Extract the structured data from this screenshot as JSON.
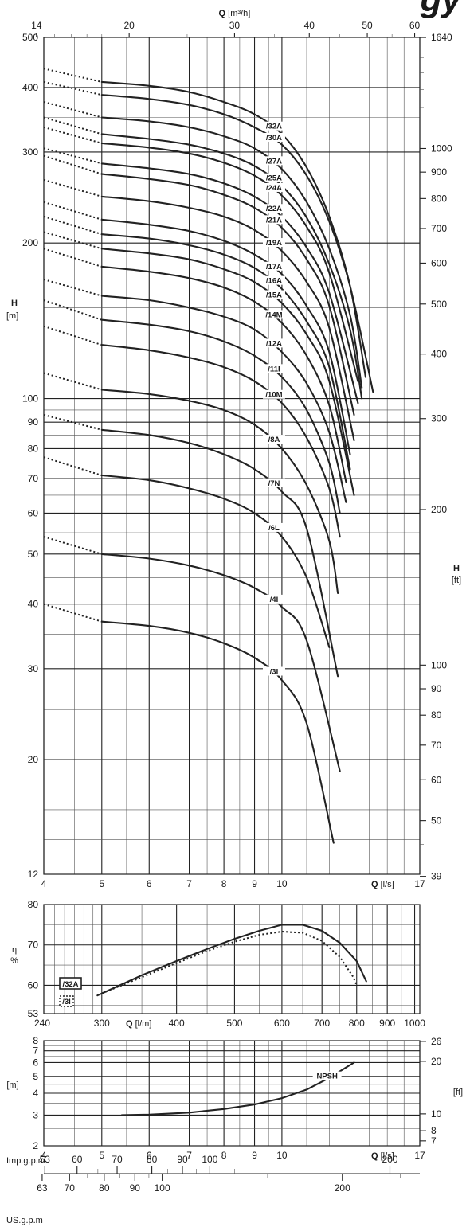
{
  "chart_data": [
    {
      "type": "line",
      "name": "head-curves",
      "xlabel": "Q",
      "xunit": "[l/s]",
      "ylabel": "H",
      "yunit": "[m]",
      "y2label": "H",
      "y2unit": "[ft]",
      "top_xlabel": "Q",
      "top_xunit": "[m³/h]",
      "x_scale": "log",
      "y_scale": "log",
      "xlim": [
        4,
        17
      ],
      "ylim": [
        12,
        500
      ],
      "x_ticks": [
        4,
        5,
        6,
        7,
        8,
        9,
        10,
        17
      ],
      "x_tick_labels": [
        "4",
        "5",
        "6",
        "7",
        "8",
        "9",
        "10",
        "17"
      ],
      "y_ticks": [
        12,
        20,
        30,
        40,
        50,
        60,
        70,
        80,
        90,
        100,
        200,
        300,
        400,
        500
      ],
      "y_tick_labels": [
        "12",
        "20",
        "30",
        "40",
        "50",
        "60",
        "70",
        "80",
        "90",
        "100",
        "200",
        "300",
        "400",
        "500"
      ],
      "top_x_ticks": [
        14,
        20,
        30,
        40,
        50,
        60
      ],
      "top_x_tick_labels": [
        "14",
        "20",
        "30",
        "40",
        "50",
        "60"
      ],
      "y2_ticks": [
        39,
        50,
        60,
        70,
        80,
        90,
        100,
        200,
        300,
        400,
        500,
        600,
        700,
        800,
        900,
        1000,
        1640
      ],
      "y2_tick_labels": [
        "39",
        "50",
        "60",
        "70",
        "80",
        "90",
        "100",
        "200",
        "300",
        "400",
        "500",
        "600",
        "700",
        "800",
        "900",
        "1000",
        "1640"
      ],
      "grid": true,
      "series": [
        {
          "label": "/32A",
          "x": [
            4,
            5,
            6,
            7,
            8,
            9,
            10,
            11,
            12,
            13,
            13.8
          ],
          "y": [
            435,
            410,
            403,
            392,
            375,
            355,
            325,
            280,
            225,
            165,
            110
          ]
        },
        {
          "label": "/30A",
          "x": [
            4,
            5,
            6,
            7,
            8,
            9,
            10,
            11,
            12,
            13,
            14.2
          ],
          "y": [
            410,
            387,
            380,
            370,
            355,
            335,
            310,
            270,
            220,
            165,
            103
          ]
        },
        {
          "label": "/27A",
          "x": [
            4,
            5,
            6,
            7,
            8,
            9,
            10,
            11,
            12,
            13,
            13.6
          ],
          "y": [
            375,
            350,
            344,
            335,
            322,
            305,
            278,
            240,
            195,
            145,
            105
          ]
        },
        {
          "label": "/25A",
          "x": [
            4,
            5,
            6,
            7,
            8,
            9,
            10,
            11,
            12,
            13,
            13.6
          ],
          "y": [
            350,
            325,
            318,
            310,
            298,
            282,
            258,
            224,
            182,
            136,
            100
          ]
        },
        {
          "label": "/24A",
          "x": [
            4,
            5,
            6,
            7,
            8,
            9,
            10,
            11,
            12,
            13.4
          ],
          "y": [
            335,
            312,
            306,
            298,
            286,
            270,
            247,
            215,
            175,
            108
          ]
        },
        {
          "label": "/22A",
          "x": [
            4,
            5,
            6,
            7,
            8,
            9,
            10,
            11,
            12,
            13.4
          ],
          "y": [
            305,
            285,
            279,
            272,
            261,
            246,
            225,
            196,
            160,
            98
          ]
        },
        {
          "label": "/21A",
          "x": [
            4,
            5,
            6,
            7,
            8,
            9,
            10,
            11,
            12,
            13.2
          ],
          "y": [
            295,
            272,
            266,
            259,
            248,
            234,
            214,
            186,
            151,
            93
          ]
        },
        {
          "label": "/19A",
          "x": [
            4,
            5,
            6,
            7,
            8,
            9,
            10,
            11,
            12,
            13.2
          ],
          "y": [
            265,
            246,
            241,
            234,
            225,
            212,
            193,
            168,
            137,
            83
          ]
        },
        {
          "label": "/17A",
          "x": [
            4,
            5,
            6,
            7,
            8,
            9,
            10,
            11,
            12,
            13.0
          ],
          "y": [
            240,
            222,
            217,
            211,
            202,
            190,
            174,
            151,
            123,
            78
          ]
        },
        {
          "label": "/16A",
          "x": [
            4,
            5,
            6,
            7,
            8,
            9,
            10,
            11,
            12,
            13.0
          ],
          "y": [
            225,
            208,
            204,
            198,
            190,
            179,
            163,
            141,
            115,
            73
          ]
        },
        {
          "label": "/15A",
          "x": [
            4,
            5,
            6,
            7,
            8,
            9,
            10,
            11,
            12,
            13.2
          ],
          "y": [
            210,
            195,
            191,
            186,
            178,
            168,
            153,
            133,
            108,
            65
          ]
        },
        {
          "label": "/14M",
          "x": [
            4,
            5,
            6,
            7,
            8,
            9,
            10,
            11,
            12,
            12.8
          ],
          "y": [
            195,
            180,
            176,
            171,
            164,
            154,
            140,
            121,
            97,
            69
          ]
        },
        {
          "label": "/12A",
          "x": [
            4,
            5,
            6,
            7,
            8,
            9,
            10,
            11,
            12,
            12.8
          ],
          "y": [
            170,
            158,
            155,
            150,
            144,
            136,
            123,
            107,
            86,
            63
          ]
        },
        {
          "label": "/11I",
          "x": [
            4,
            5,
            6,
            7,
            8,
            9,
            10,
            11,
            12,
            12.5
          ],
          "y": [
            155,
            142,
            139,
            135,
            129,
            121,
            110,
            95,
            75,
            60
          ]
        },
        {
          "label": "/10M",
          "x": [
            4,
            5,
            6,
            7,
            8,
            9,
            10,
            11,
            12,
            12.5
          ],
          "y": [
            138,
            127,
            124,
            120,
            115,
            108,
            98,
            84,
            67,
            54
          ]
        },
        {
          "label": "/8A",
          "x": [
            4,
            5,
            6,
            7,
            8,
            9,
            10,
            11,
            12,
            12.4
          ],
          "y": [
            112,
            104,
            102,
            99,
            95,
            89,
            80,
            68,
            53,
            42
          ]
        },
        {
          "label": "/7N",
          "x": [
            4,
            5,
            6,
            7,
            8,
            9,
            10,
            11,
            12.4
          ],
          "y": [
            93,
            87,
            85,
            82,
            78,
            73,
            66,
            56,
            29
          ]
        },
        {
          "label": "/6L",
          "x": [
            4,
            5,
            6,
            7,
            8,
            9,
            10,
            11,
            12.0
          ],
          "y": [
            77,
            71,
            69.5,
            67,
            64,
            60,
            54,
            45,
            33
          ]
        },
        {
          "label": "/4I",
          "x": [
            4,
            5,
            6,
            7,
            8,
            9,
            10,
            11,
            12.5
          ],
          "y": [
            54,
            50,
            49,
            47.5,
            45.5,
            43,
            39.5,
            34,
            19
          ]
        },
        {
          "label": "/3I",
          "x": [
            4,
            5,
            6,
            7,
            8,
            9,
            10,
            11,
            12.2
          ],
          "y": [
            40,
            37,
            36.3,
            35.2,
            33.6,
            31.5,
            28.5,
            23.5,
            13.8
          ]
        }
      ]
    },
    {
      "type": "line",
      "name": "efficiency",
      "xlabel": "Q",
      "xunit": "[l/m]",
      "ylabel": "η",
      "yunit": "%",
      "x_scale": "log",
      "xlim": [
        240,
        1020
      ],
      "ylim": [
        53,
        80
      ],
      "x_ticks": [
        240,
        300,
        400,
        500,
        600,
        700,
        800,
        900,
        1000
      ],
      "x_tick_labels": [
        "240",
        "300",
        "400",
        "500",
        "600",
        "700",
        "800",
        "900",
        "1000"
      ],
      "y_ticks": [
        53,
        60,
        70,
        80
      ],
      "y_tick_labels": [
        "53",
        "60",
        "70",
        "80"
      ],
      "grid": true,
      "legend": [
        {
          "label": "/32A",
          "style": "solid"
        },
        {
          "label": "/3I",
          "style": "dotted"
        }
      ],
      "series": [
        {
          "label": "/32A",
          "style": "solid",
          "x": [
            295,
            350,
            400,
            450,
            500,
            550,
            600,
            650,
            700,
            750,
            800,
            830
          ],
          "y": [
            57.5,
            62.5,
            66,
            69,
            71.5,
            73.5,
            75,
            75,
            73.5,
            70.5,
            66,
            61
          ]
        },
        {
          "label": "/3I",
          "style": "dotted",
          "x": [
            300,
            350,
            400,
            450,
            500,
            550,
            600,
            650,
            700,
            750,
            790,
            800
          ],
          "y": [
            58,
            62,
            65.5,
            68.5,
            70.8,
            72.5,
            73.3,
            73,
            71,
            67,
            62,
            60
          ]
        }
      ]
    },
    {
      "type": "line",
      "name": "npsh",
      "xlabel": "Q",
      "xunit": "[l/s]",
      "ylabel": "",
      "yunit": "[m]",
      "y2label": "",
      "y2unit": "[ft]",
      "series_label": "NPSH",
      "x_scale": "log",
      "y_scale": "log",
      "xlim": [
        4,
        17
      ],
      "ylim": [
        2,
        8
      ],
      "x_ticks": [
        4,
        5,
        6,
        7,
        8,
        9,
        10,
        17
      ],
      "x_tick_labels": [
        "4",
        "5",
        "6",
        "7",
        "8",
        "9",
        "10",
        "17"
      ],
      "y_ticks": [
        2,
        3,
        4,
        5,
        6,
        7,
        8
      ],
      "y_tick_labels": [
        "2",
        "3",
        "4",
        "5",
        "6",
        "7",
        "8"
      ],
      "y2_ticks": [
        7,
        8,
        10,
        20,
        26
      ],
      "y2_tick_labels": [
        "7",
        "8",
        "10",
        "20",
        "26"
      ],
      "grid": true,
      "series": [
        {
          "label": "NPSH",
          "x": [
            5.4,
            6,
            7,
            8,
            9,
            10,
            11,
            12,
            13.2
          ],
          "y": [
            3.0,
            3.02,
            3.1,
            3.25,
            3.45,
            3.75,
            4.2,
            4.9,
            6.0
          ]
        }
      ]
    }
  ],
  "conversion_scales": {
    "imp_label": "Imp.g.p.m",
    "imp_labels": [
      "53",
      "60",
      "70",
      "80",
      "90",
      "100",
      "200"
    ],
    "us_label": "US.g.p.m",
    "us_labels": [
      "63",
      "70",
      "80",
      "90",
      "100",
      "200"
    ]
  },
  "brand_fragment": "gy"
}
